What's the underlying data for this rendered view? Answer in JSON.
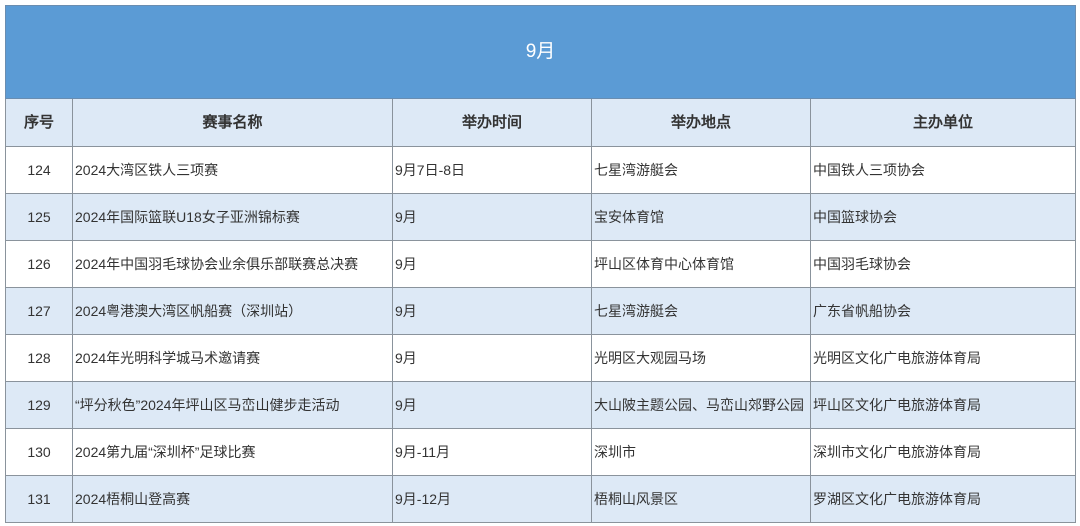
{
  "title": "9月",
  "columns": [
    "序号",
    "赛事名称",
    "举办时间",
    "举办地点",
    "主办单位"
  ],
  "rows": [
    [
      "124",
      "2024大湾区铁人三项赛",
      "9月7日-8日",
      "七星湾游艇会",
      "中国铁人三项协会"
    ],
    [
      "125",
      "2024年国际篮联U18女子亚洲锦标赛",
      "9月",
      "宝安体育馆",
      "中国篮球协会"
    ],
    [
      "126",
      "2024年中国羽毛球协会业余俱乐部联赛总决赛",
      "9月",
      "坪山区体育中心体育馆",
      "中国羽毛球协会"
    ],
    [
      "127",
      "2024粤港澳大湾区帆船赛（深圳站）",
      "9月",
      "七星湾游艇会",
      "广东省帆船协会"
    ],
    [
      "128",
      "2024年光明科学城马术邀请赛",
      "9月",
      "光明区大观园马场",
      "光明区文化广电旅游体育局"
    ],
    [
      "129",
      "“坪分秋色”2024年坪山区马峦山健步走活动",
      "9月",
      "大山陂主题公园、马峦山郊野公园",
      "坪山区文化广电旅游体育局"
    ],
    [
      "130",
      "2024第九届“深圳杯”足球比赛",
      "9月-11月",
      "深圳市",
      "深圳市文化广电旅游体育局"
    ],
    [
      "131",
      "2024梧桐山登高赛",
      "9月-12月",
      "梧桐山风景区",
      "罗湖区文化广电旅游体育局"
    ]
  ],
  "colors": {
    "title_bg": "#5b9bd5",
    "alt_row_bg": "#dde9f6"
  }
}
